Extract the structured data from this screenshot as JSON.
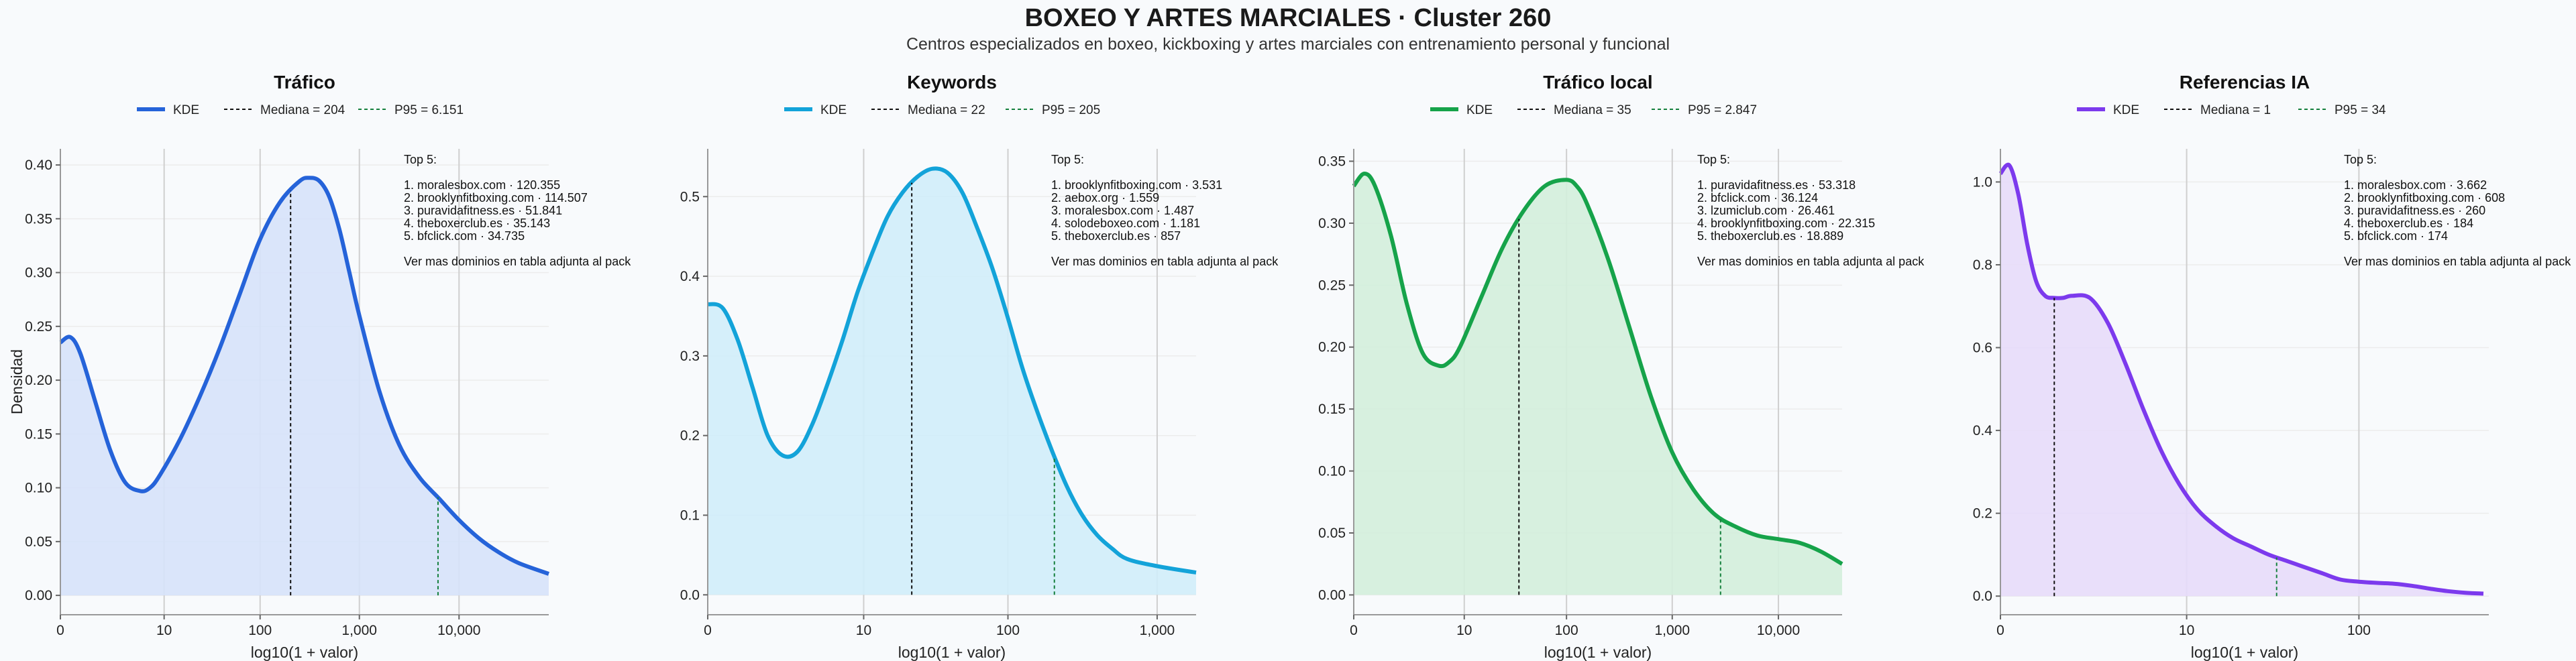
{
  "header": {
    "title": "BOXEO Y ARTES MARCIALES · Cluster 260",
    "subtitle": "Centros especializados en boxeo, kickboxing y artes marciales con entrenamiento personal y funcional"
  },
  "chart_data": [
    {
      "type": "area",
      "title": "Tráfico",
      "xlabel": "log10(1 + valor)",
      "ylabel": "Densidad",
      "xlim": [
        0,
        4.9
      ],
      "ylim": [
        -0.018,
        0.415
      ],
      "yticks": [
        0.0,
        0.05,
        0.1,
        0.15,
        0.2,
        0.25,
        0.3,
        0.35,
        0.4
      ],
      "ytick_labels": [
        "0.00",
        "0.05",
        "0.10",
        "0.15",
        "0.20",
        "0.25",
        "0.30",
        "0.35",
        "0.40"
      ],
      "xticks": [
        0,
        1.041,
        2.004,
        3.0,
        4.0
      ],
      "xtick_labels": [
        "0",
        "10",
        "100",
        "1,000",
        "10,000"
      ],
      "color": "#2563d9",
      "fill": "#d6e2fa",
      "legend": [
        "KDE",
        "Mediana = 204",
        "P95 = 6.151"
      ],
      "median_x": 2.31,
      "p95_x": 3.789,
      "series": [
        {
          "name": "KDE",
          "x": [
            0,
            0.1,
            0.2,
            0.35,
            0.5,
            0.65,
            0.8,
            0.9,
            1.0,
            1.2,
            1.4,
            1.6,
            1.8,
            2.0,
            2.2,
            2.4,
            2.5,
            2.6,
            2.7,
            2.8,
            2.9,
            3.0,
            3.2,
            3.4,
            3.6,
            3.8,
            4.0,
            4.2,
            4.4,
            4.6,
            4.9
          ],
          "y": [
            0.235,
            0.24,
            0.225,
            0.18,
            0.135,
            0.105,
            0.097,
            0.1,
            0.112,
            0.145,
            0.185,
            0.23,
            0.28,
            0.33,
            0.365,
            0.385,
            0.388,
            0.385,
            0.37,
            0.34,
            0.3,
            0.26,
            0.19,
            0.14,
            0.11,
            0.09,
            0.07,
            0.053,
            0.04,
            0.03,
            0.02
          ]
        }
      ],
      "annotation": {
        "heading": "Top 5:",
        "items": [
          "1. moralesbox.com · 120.355",
          "2. brooklynfitboxing.com · 114.507",
          "3. puravidafitness.es · 51.841",
          "4. theboxerclub.es · 35.143",
          "5. bfclick.com · 34.735"
        ],
        "footer": "Ver mas dominios en tabla adjunta al pack"
      }
    },
    {
      "type": "area",
      "title": "Keywords",
      "xlabel": "log10(1 + valor)",
      "ylabel": "",
      "xlim": [
        0,
        3.26
      ],
      "ylim": [
        -0.025,
        0.56
      ],
      "yticks": [
        0.0,
        0.1,
        0.2,
        0.3,
        0.4,
        0.5
      ],
      "ytick_labels": [
        "0.0",
        "0.1",
        "0.2",
        "0.3",
        "0.4",
        "0.5"
      ],
      "xticks": [
        0,
        1.041,
        2.004,
        3.0
      ],
      "xtick_labels": [
        "0",
        "10",
        "100",
        "1,000"
      ],
      "color": "#13a3d9",
      "fill": "#d0edfa",
      "legend": [
        "KDE",
        "Mediana = 22",
        "P95 = 205"
      ],
      "median_x": 1.362,
      "p95_x": 2.314,
      "series": [
        {
          "name": "KDE",
          "x": [
            0,
            0.1,
            0.2,
            0.3,
            0.4,
            0.5,
            0.6,
            0.7,
            0.8,
            0.9,
            1.0,
            1.1,
            1.2,
            1.3,
            1.4,
            1.5,
            1.6,
            1.7,
            1.8,
            1.9,
            2.0,
            2.1,
            2.2,
            2.3,
            2.4,
            2.5,
            2.6,
            2.7,
            2.8,
            3.0,
            3.26
          ],
          "y": [
            0.365,
            0.36,
            0.32,
            0.26,
            0.2,
            0.175,
            0.18,
            0.215,
            0.265,
            0.32,
            0.38,
            0.43,
            0.475,
            0.505,
            0.525,
            0.535,
            0.53,
            0.505,
            0.46,
            0.41,
            0.35,
            0.285,
            0.23,
            0.18,
            0.135,
            0.1,
            0.075,
            0.058,
            0.045,
            0.036,
            0.028
          ]
        }
      ],
      "annotation": {
        "heading": "Top 5:",
        "items": [
          "1. brooklynfitboxing.com · 3.531",
          "2. aebox.org · 1.559",
          "3. moralesbox.com · 1.487",
          "4. solodeboxeo.com · 1.181",
          "5. theboxerclub.es · 857"
        ],
        "footer": "Ver mas dominios en tabla adjunta al pack"
      }
    },
    {
      "type": "area",
      "title": "Tráfico local",
      "xlabel": "log10(1 + valor)",
      "ylabel": "",
      "xlim": [
        0,
        4.6
      ],
      "ylim": [
        -0.016,
        0.36
      ],
      "yticks": [
        0.0,
        0.05,
        0.1,
        0.15,
        0.2,
        0.25,
        0.3,
        0.35
      ],
      "ytick_labels": [
        "0.00",
        "0.05",
        "0.10",
        "0.15",
        "0.20",
        "0.25",
        "0.30",
        "0.35"
      ],
      "xticks": [
        0,
        1.041,
        2.004,
        3.0,
        4.0
      ],
      "xtick_labels": [
        "0",
        "10",
        "100",
        "1,000",
        "10,000"
      ],
      "color": "#16a34a",
      "fill": "#d3eedc",
      "legend": [
        "KDE",
        "Mediana = 35",
        "P95 = 2.847"
      ],
      "median_x": 1.556,
      "p95_x": 3.455,
      "series": [
        {
          "name": "KDE",
          "x": [
            0,
            0.1,
            0.2,
            0.35,
            0.5,
            0.65,
            0.8,
            0.9,
            1.0,
            1.2,
            1.4,
            1.6,
            1.8,
            2.0,
            2.1,
            2.2,
            2.4,
            2.6,
            2.8,
            3.0,
            3.2,
            3.4,
            3.6,
            3.8,
            4.0,
            4.2,
            4.4,
            4.6
          ],
          "y": [
            0.33,
            0.34,
            0.33,
            0.29,
            0.235,
            0.195,
            0.185,
            0.188,
            0.2,
            0.24,
            0.28,
            0.31,
            0.33,
            0.335,
            0.33,
            0.315,
            0.27,
            0.215,
            0.16,
            0.115,
            0.085,
            0.065,
            0.055,
            0.048,
            0.045,
            0.042,
            0.035,
            0.025
          ]
        }
      ],
      "annotation": {
        "heading": "Top 5:",
        "items": [
          "1. puravidafitness.es · 53.318",
          "2. bfclick.com · 36.124",
          "3. lzumiclub.com · 26.461",
          "4. brooklynfitboxing.com · 22.315",
          "5. theboxerclub.es · 18.889"
        ],
        "footer": "Ver mas dominios en tabla adjunta al pack"
      }
    },
    {
      "type": "area",
      "title": "Referencias IA",
      "xlabel": "log10(1 + valor)",
      "ylabel": "",
      "xlim": [
        0,
        2.73
      ],
      "ylim": [
        -0.045,
        1.08
      ],
      "yticks": [
        0.0,
        0.2,
        0.4,
        0.6,
        0.8,
        1.0
      ],
      "ytick_labels": [
        "0.0",
        "0.2",
        "0.4",
        "0.6",
        "0.8",
        "1.0"
      ],
      "xticks": [
        0,
        1.041,
        2.004
      ],
      "xtick_labels": [
        "0",
        "10",
        "100"
      ],
      "color": "#7c3aed",
      "fill": "#e7dcfa",
      "legend": [
        "KDE",
        "Mediana = 1",
        "P95 = 34"
      ],
      "median_x": 0.301,
      "p95_x": 1.544,
      "series": [
        {
          "name": "KDE",
          "x": [
            0,
            0.05,
            0.1,
            0.15,
            0.2,
            0.25,
            0.3,
            0.35,
            0.4,
            0.5,
            0.6,
            0.7,
            0.8,
            0.9,
            1.0,
            1.1,
            1.2,
            1.3,
            1.4,
            1.5,
            1.6,
            1.7,
            1.8,
            1.9,
            2.0,
            2.1,
            2.2,
            2.3,
            2.4,
            2.5,
            2.6,
            2.7
          ],
          "y": [
            1.02,
            1.04,
            0.97,
            0.85,
            0.76,
            0.725,
            0.72,
            0.72,
            0.725,
            0.72,
            0.66,
            0.56,
            0.45,
            0.35,
            0.27,
            0.21,
            0.17,
            0.14,
            0.12,
            0.1,
            0.085,
            0.07,
            0.055,
            0.04,
            0.035,
            0.032,
            0.03,
            0.025,
            0.018,
            0.012,
            0.008,
            0.006
          ]
        }
      ],
      "annotation": {
        "heading": "Top 5:",
        "items": [
          "1. moralesbox.com · 3.662",
          "2. brooklynfitboxing.com · 608",
          "3. puravidafitness.es · 260",
          "4. theboxerclub.es · 184",
          "5. bfclick.com · 174"
        ],
        "footer": "Ver mas dominios en tabla adjunta al pack"
      }
    }
  ]
}
